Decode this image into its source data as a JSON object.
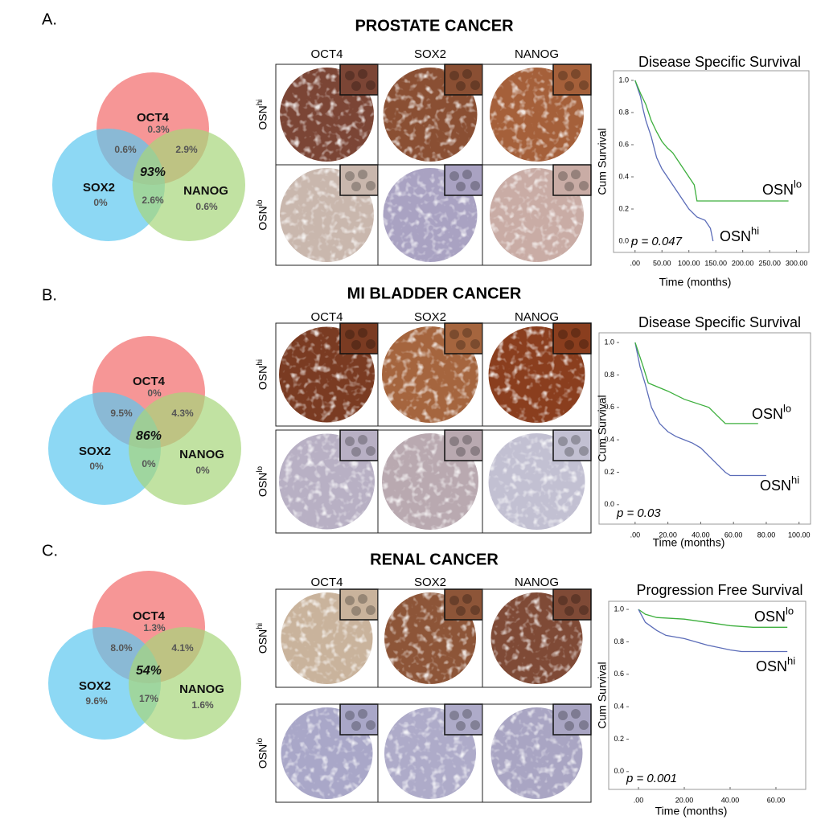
{
  "panels": [
    {
      "label": "A.",
      "title": "PROSTATE CANCER",
      "venn": {
        "sets": [
          {
            "name": "OCT4",
            "only": "0.3%",
            "color": "#f26a6a"
          },
          {
            "name": "SOX2",
            "only": "0%",
            "color": "#5cc8f0"
          },
          {
            "name": "NANOG",
            "only": "0.6%",
            "color": "#a6d67a"
          }
        ],
        "oct4_sox2": "0.6%",
        "oct4_nanog": "2.9%",
        "sox2_nanog": "2.6%",
        "all": "93%"
      },
      "stains": {
        "columns": [
          "OCT4",
          "SOX2",
          "NANOG"
        ],
        "rows": [
          {
            "name": "OSN",
            "sup": "hi"
          },
          {
            "name": "OSN",
            "sup": "lo"
          }
        ]
      }
    },
    {
      "label": "B.",
      "title": "MI BLADDER CANCER",
      "venn": {
        "sets": [
          {
            "name": "OCT4",
            "only": "0%",
            "color": "#f26a6a"
          },
          {
            "name": "SOX2",
            "only": "0%",
            "color": "#5cc8f0"
          },
          {
            "name": "NANOG",
            "only": "0%",
            "color": "#a6d67a"
          }
        ],
        "oct4_sox2": "9.5%",
        "oct4_nanog": "4.3%",
        "sox2_nanog": "0%",
        "all": "86%"
      },
      "stains": {
        "columns": [
          "OCT4",
          "SOX2",
          "NANOG"
        ],
        "rows": [
          {
            "name": "OSN",
            "sup": "hi"
          },
          {
            "name": "OSN",
            "sup": "lo"
          }
        ]
      }
    },
    {
      "label": "C.",
      "title": "RENAL CANCER",
      "venn": {
        "sets": [
          {
            "name": "OCT4",
            "only": "1.3%",
            "color": "#f26a6a"
          },
          {
            "name": "SOX2",
            "only": "9.6%",
            "color": "#5cc8f0"
          },
          {
            "name": "NANOG",
            "only": "1.6%",
            "color": "#a6d67a"
          }
        ],
        "oct4_sox2": "8.0%",
        "oct4_nanog": "4.1%",
        "sox2_nanog": "17%",
        "all": "54%"
      },
      "stains": {
        "columns": [
          "OCT4",
          "SOX2",
          "NANOG"
        ],
        "rows": [
          {
            "name": "OSN",
            "sup": "hi"
          },
          {
            "name": "OSN",
            "sup": "lo"
          }
        ]
      }
    }
  ],
  "chart_data": [
    {
      "type": "line",
      "title": "Disease Specific Survival",
      "x_label": "Time (months)",
      "y_label": "Cum Survival",
      "annotation": "p = 0.047",
      "xlim": [
        -40,
        323
      ],
      "xticks": [
        {
          "value": 0,
          "label": ".00"
        },
        {
          "value": 50,
          "label": "50.00"
        },
        {
          "value": 100,
          "label": "100.00"
        },
        {
          "value": 150,
          "label": "150.00"
        },
        {
          "value": 200,
          "label": "200.00"
        },
        {
          "value": 250,
          "label": "250.00"
        },
        {
          "value": 300,
          "label": "300.00"
        }
      ],
      "ylim": [
        -0.07,
        1.06
      ],
      "yticks": [
        {
          "value": 0,
          "label": "0.0"
        },
        0.2,
        0.4,
        0.6,
        0.8,
        {
          "value": 1,
          "label": "1.0"
        }
      ],
      "series": [
        {
          "name": "OSN",
          "name_sup": "hi",
          "color": "#5b6cb8",
          "x": [
            0,
            5,
            10,
            15,
            20,
            30,
            40,
            50,
            60,
            70,
            80,
            90,
            100,
            115,
            130,
            140,
            145
          ],
          "values": [
            1,
            0.95,
            0.9,
            0.82,
            0.75,
            0.65,
            0.52,
            0.45,
            0.4,
            0.35,
            0.3,
            0.25,
            0.2,
            0.15,
            0.13,
            0.08,
            0
          ]
        },
        {
          "name": "OSN",
          "name_sup": "lo",
          "color": "#3daf3d",
          "x": [
            0,
            10,
            20,
            30,
            40,
            50,
            60,
            70,
            80,
            90,
            100,
            110,
            115,
            285
          ],
          "values": [
            1,
            0.92,
            0.85,
            0.75,
            0.68,
            0.62,
            0.58,
            0.55,
            0.5,
            0.45,
            0.4,
            0.35,
            0.25,
            0.25
          ]
        }
      ]
    },
    {
      "type": "line",
      "title": "Disease Specific Survival",
      "x_label": "Time (months)",
      "y_label": "Cum Survival",
      "annotation": "p = 0.03",
      "xlim": [
        -22,
        107
      ],
      "xticks": [
        {
          "value": 0,
          "label": ".00"
        },
        {
          "value": 20,
          "label": "20.00"
        },
        {
          "value": 40,
          "label": "40.00"
        },
        {
          "value": 60,
          "label": "60.00"
        },
        {
          "value": 80,
          "label": "80.00"
        },
        {
          "value": 100,
          "label": "100.00"
        }
      ],
      "ylim": [
        -0.12,
        1.06
      ],
      "yticks": [
        {
          "value": 0,
          "label": "0.0"
        },
        0.2,
        0.4,
        0.6,
        0.8,
        {
          "value": 1,
          "label": "1.0"
        }
      ],
      "series": [
        {
          "name": "OSN",
          "name_sup": "hi",
          "color": "#5b6cb8",
          "x": [
            0,
            3,
            6,
            10,
            15,
            20,
            25,
            30,
            35,
            40,
            45,
            50,
            55,
            58,
            80
          ],
          "values": [
            1,
            0.85,
            0.75,
            0.6,
            0.5,
            0.45,
            0.42,
            0.4,
            0.38,
            0.35,
            0.3,
            0.25,
            0.2,
            0.18,
            0.18
          ]
        },
        {
          "name": "OSN",
          "name_sup": "lo",
          "color": "#3daf3d",
          "x": [
            0,
            5,
            8,
            20,
            30,
            45,
            50,
            55,
            75
          ],
          "values": [
            1,
            0.85,
            0.75,
            0.7,
            0.65,
            0.6,
            0.55,
            0.5,
            0.5
          ]
        }
      ]
    },
    {
      "type": "line",
      "title": "Progression Free Survival",
      "x_label": "Time (months)",
      "y_label": "Cum Survival",
      "annotation": "p = 0.001",
      "xlim": [
        -13,
        73
      ],
      "xticks": [
        {
          "value": 0,
          "label": ".00"
        },
        {
          "value": 20,
          "label": "20.00"
        },
        {
          "value": 40,
          "label": "40.00"
        },
        {
          "value": 60,
          "label": "60.00"
        }
      ],
      "ylim": [
        -0.11,
        1.05
      ],
      "yticks": [
        {
          "value": 0,
          "label": "0.0"
        },
        0.2,
        0.4,
        0.6,
        0.8,
        {
          "value": 1,
          "label": "1.0"
        }
      ],
      "series": [
        {
          "name": "OSN",
          "name_sup": "lo",
          "color": "#3daf3d",
          "x": [
            0,
            3,
            8,
            20,
            30,
            40,
            50,
            65
          ],
          "values": [
            1,
            0.97,
            0.95,
            0.94,
            0.92,
            0.9,
            0.89,
            0.89
          ]
        },
        {
          "name": "OSN",
          "name_sup": "hi",
          "color": "#5b6cb8",
          "x": [
            0,
            3,
            8,
            12,
            20,
            30,
            40,
            45,
            65
          ],
          "values": [
            1,
            0.92,
            0.87,
            0.84,
            0.82,
            0.78,
            0.75,
            0.74,
            0.74
          ]
        }
      ]
    }
  ]
}
